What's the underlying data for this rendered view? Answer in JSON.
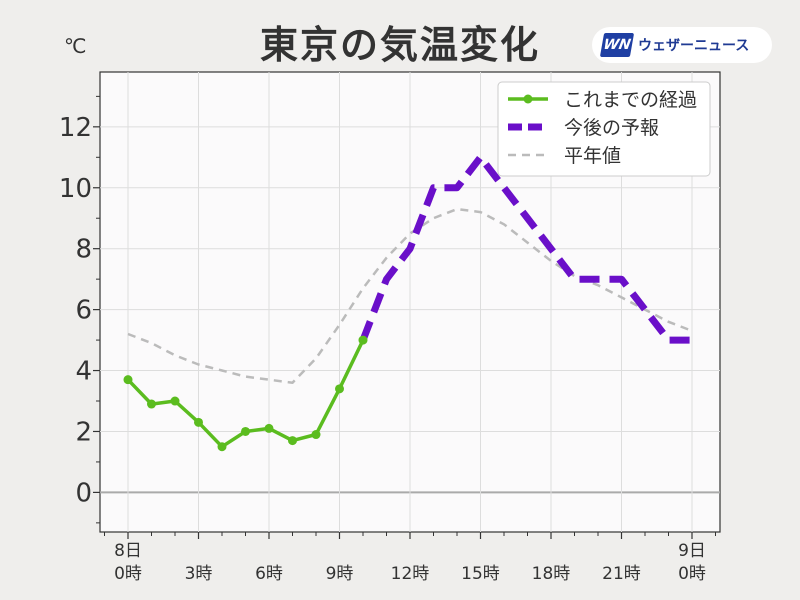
{
  "title": "東京の気温変化",
  "unit_label": "℃",
  "brand": {
    "logo_text": "WN",
    "name": "ウェザーニュース"
  },
  "chart_data": {
    "type": "line",
    "title": "東京の気温変化",
    "ylabel": "℃",
    "xlabel": "",
    "ylim": [
      -1.3,
      13.8
    ],
    "xlim": [
      0,
      24
    ],
    "grid": true,
    "legend_position": "top-right",
    "yticks": [
      0,
      2,
      4,
      6,
      8,
      10,
      12
    ],
    "xticks": [
      {
        "x": 0,
        "lines": [
          "8日",
          "0時"
        ]
      },
      {
        "x": 3,
        "lines": [
          "",
          "3時"
        ]
      },
      {
        "x": 6,
        "lines": [
          "",
          "6時"
        ]
      },
      {
        "x": 9,
        "lines": [
          "",
          "9時"
        ]
      },
      {
        "x": 12,
        "lines": [
          "",
          "12時"
        ]
      },
      {
        "x": 15,
        "lines": [
          "",
          "15時"
        ]
      },
      {
        "x": 18,
        "lines": [
          "",
          "18時"
        ]
      },
      {
        "x": 21,
        "lines": [
          "",
          "21時"
        ]
      },
      {
        "x": 24,
        "lines": [
          "9日",
          "0時"
        ]
      }
    ],
    "series": [
      {
        "name": "これまでの経過",
        "color": "#5bbc1f",
        "style": "solid-markers",
        "x": [
          0,
          1,
          2,
          3,
          4,
          5,
          6,
          7,
          8,
          9,
          10
        ],
        "y": [
          3.7,
          2.9,
          3.0,
          2.3,
          1.5,
          2.0,
          2.1,
          1.7,
          1.9,
          3.4,
          5.0
        ]
      },
      {
        "name": "今後の予報",
        "color": "#6a0fc9",
        "style": "dashed-thick",
        "x": [
          10,
          11,
          12,
          13,
          14,
          15,
          16,
          17,
          18,
          19,
          20,
          21,
          22,
          23,
          24
        ],
        "y": [
          5.0,
          7.0,
          8.0,
          10.0,
          10.0,
          11.0,
          10.0,
          9.0,
          8.0,
          7.0,
          7.0,
          7.0,
          6.0,
          5.0,
          5.0
        ]
      },
      {
        "name": "平年値",
        "color": "#bbbbbb",
        "style": "dashed-thin",
        "x": [
          0,
          1,
          2,
          3,
          4,
          5,
          6,
          7,
          8,
          9,
          10,
          11,
          12,
          13,
          14,
          15,
          16,
          17,
          18,
          19,
          20,
          21,
          22,
          23,
          24
        ],
        "y": [
          5.2,
          4.9,
          4.5,
          4.2,
          4.0,
          3.8,
          3.7,
          3.6,
          4.4,
          5.5,
          6.7,
          7.7,
          8.5,
          9.0,
          9.3,
          9.2,
          8.8,
          8.2,
          7.6,
          7.1,
          6.8,
          6.4,
          6.0,
          5.6,
          5.3
        ]
      }
    ]
  }
}
